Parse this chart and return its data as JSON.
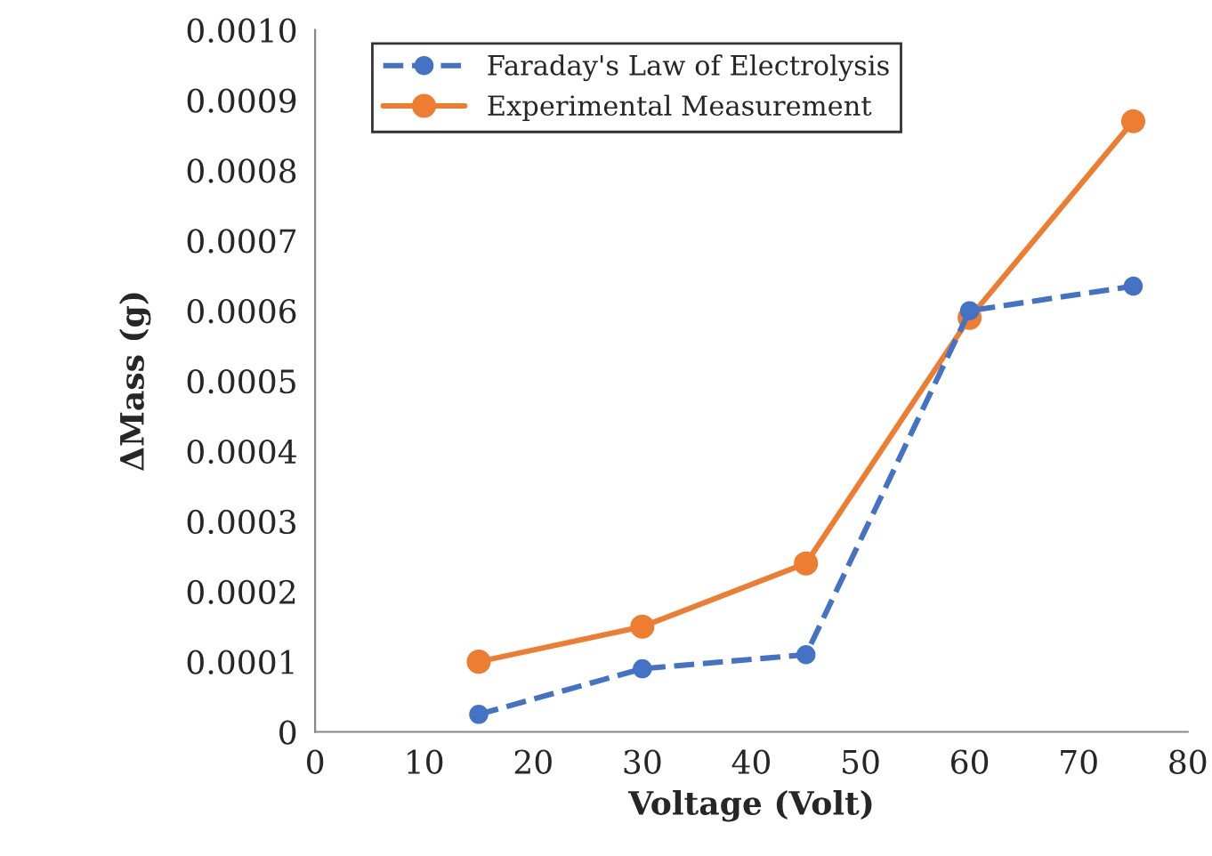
{
  "chart_data": {
    "type": "line",
    "xlabel": "Voltage (Volt)",
    "ylabel": "ΔMass (g)",
    "x": [
      15,
      30,
      45,
      60,
      75
    ],
    "series": [
      {
        "name": "Faraday's Law of Electrolysis",
        "color": "#4472c4",
        "values": [
          2.5e-05,
          9e-05,
          0.00011,
          0.0006,
          0.000635
        ],
        "line_style": "dashed",
        "marker": "circle"
      },
      {
        "name": "Experimental Measurement",
        "color": "#ed7d31",
        "values": [
          0.0001,
          0.00015,
          0.00024,
          0.00059,
          0.00087
        ],
        "line_style": "solid",
        "marker": "circle"
      }
    ],
    "xlim": [
      0,
      80
    ],
    "xticks": [
      0,
      10,
      20,
      30,
      40,
      50,
      60,
      70,
      80
    ],
    "ylim": [
      0,
      0.001
    ],
    "yticks": [
      0,
      {
        "value": 0.0001,
        "label": "0.0001"
      },
      {
        "value": 0.0002,
        "label": "0.0002"
      },
      {
        "value": 0.0003,
        "label": "0.0003"
      },
      {
        "value": 0.0004,
        "label": "0.0004"
      },
      {
        "value": 0.0005,
        "label": "0.0005"
      },
      {
        "value": 0.0006,
        "label": "0.0006"
      },
      {
        "value": 0.0007,
        "label": "0.0007"
      },
      {
        "value": 0.0008,
        "label": "0.0008"
      },
      {
        "value": 0.0009,
        "label": "0.0009"
      },
      {
        "value": 0.001,
        "label": "0.0010"
      }
    ],
    "grid": false,
    "legend": "top left"
  }
}
